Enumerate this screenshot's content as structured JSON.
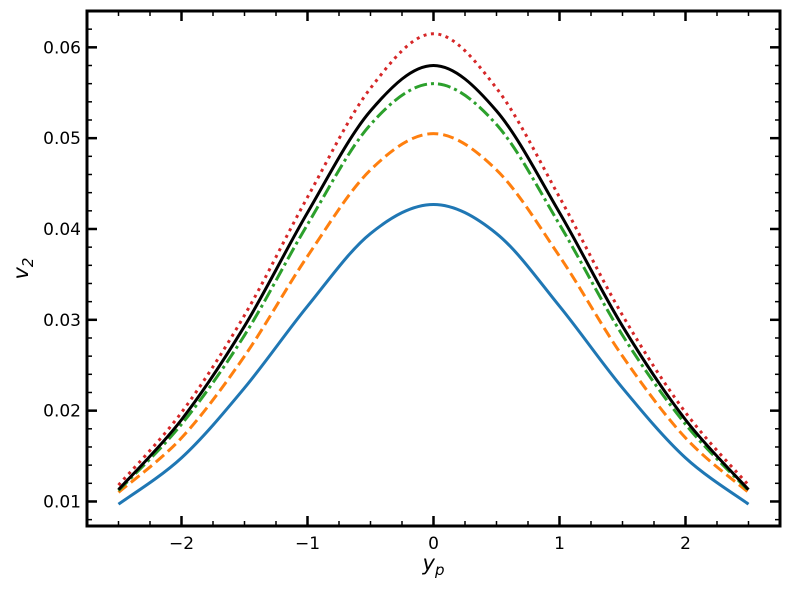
{
  "chart_data": {
    "type": "line",
    "xlabel": "y",
    "xlabel_sub": "p",
    "ylabel": "v",
    "ylabel_sub": "2",
    "xlim": [
      -2.75,
      2.75
    ],
    "ylim": [
      0.0073,
      0.064
    ],
    "x_ticks": [
      -2,
      -1,
      0,
      1,
      2
    ],
    "x_tick_labels": [
      "−2",
      "−1",
      "0",
      "1",
      "2"
    ],
    "y_ticks": [
      0.01,
      0.02,
      0.03,
      0.04,
      0.05,
      0.06
    ],
    "y_tick_labels": [
      "0.01",
      "0.02",
      "0.03",
      "0.04",
      "0.05",
      "0.06"
    ],
    "grid": false,
    "series": [
      {
        "color": "#1f77b4",
        "dash": "solid",
        "x": [
          -2.5,
          -2.0,
          -1.5,
          -1.0,
          -0.5,
          0.0,
          0.5,
          1.0,
          1.5,
          2.0,
          2.5
        ],
        "y": [
          0.0097,
          0.0148,
          0.0225,
          0.0315,
          0.0395,
          0.0427,
          0.0395,
          0.0315,
          0.0225,
          0.0148,
          0.0097
        ]
      },
      {
        "color": "#ff7f0e",
        "dash": "dashed",
        "x": [
          -2.5,
          -2.0,
          -1.5,
          -1.0,
          -0.5,
          0.0,
          0.5,
          1.0,
          1.5,
          2.0,
          2.5
        ],
        "y": [
          0.011,
          0.017,
          0.026,
          0.037,
          0.0465,
          0.0505,
          0.0465,
          0.037,
          0.026,
          0.017,
          0.011
        ]
      },
      {
        "color": "#2ca02c",
        "dash": "dashdot",
        "x": [
          -2.5,
          -2.0,
          -1.5,
          -1.0,
          -0.5,
          0.0,
          0.5,
          1.0,
          1.5,
          2.0,
          2.5
        ],
        "y": [
          0.0112,
          0.0185,
          0.0283,
          0.0405,
          0.0515,
          0.056,
          0.0515,
          0.0405,
          0.0283,
          0.0185,
          0.0112
        ]
      },
      {
        "color": "#000000",
        "dash": "solid",
        "x": [
          -2.5,
          -2.0,
          -1.5,
          -1.0,
          -0.5,
          0.0,
          0.5,
          1.0,
          1.5,
          2.0,
          2.5
        ],
        "y": [
          0.0113,
          0.019,
          0.0293,
          0.0418,
          0.053,
          0.058,
          0.053,
          0.0418,
          0.0293,
          0.019,
          0.0113
        ]
      },
      {
        "color": "#d62728",
        "dash": "dotted",
        "x": [
          -2.5,
          -2.0,
          -1.5,
          -1.0,
          -0.5,
          0.0,
          0.5,
          1.0,
          1.5,
          2.0,
          2.5
        ],
        "y": [
          0.0118,
          0.0198,
          0.0305,
          0.0435,
          0.0555,
          0.0615,
          0.0555,
          0.0435,
          0.0305,
          0.0198,
          0.0118
        ]
      }
    ]
  }
}
